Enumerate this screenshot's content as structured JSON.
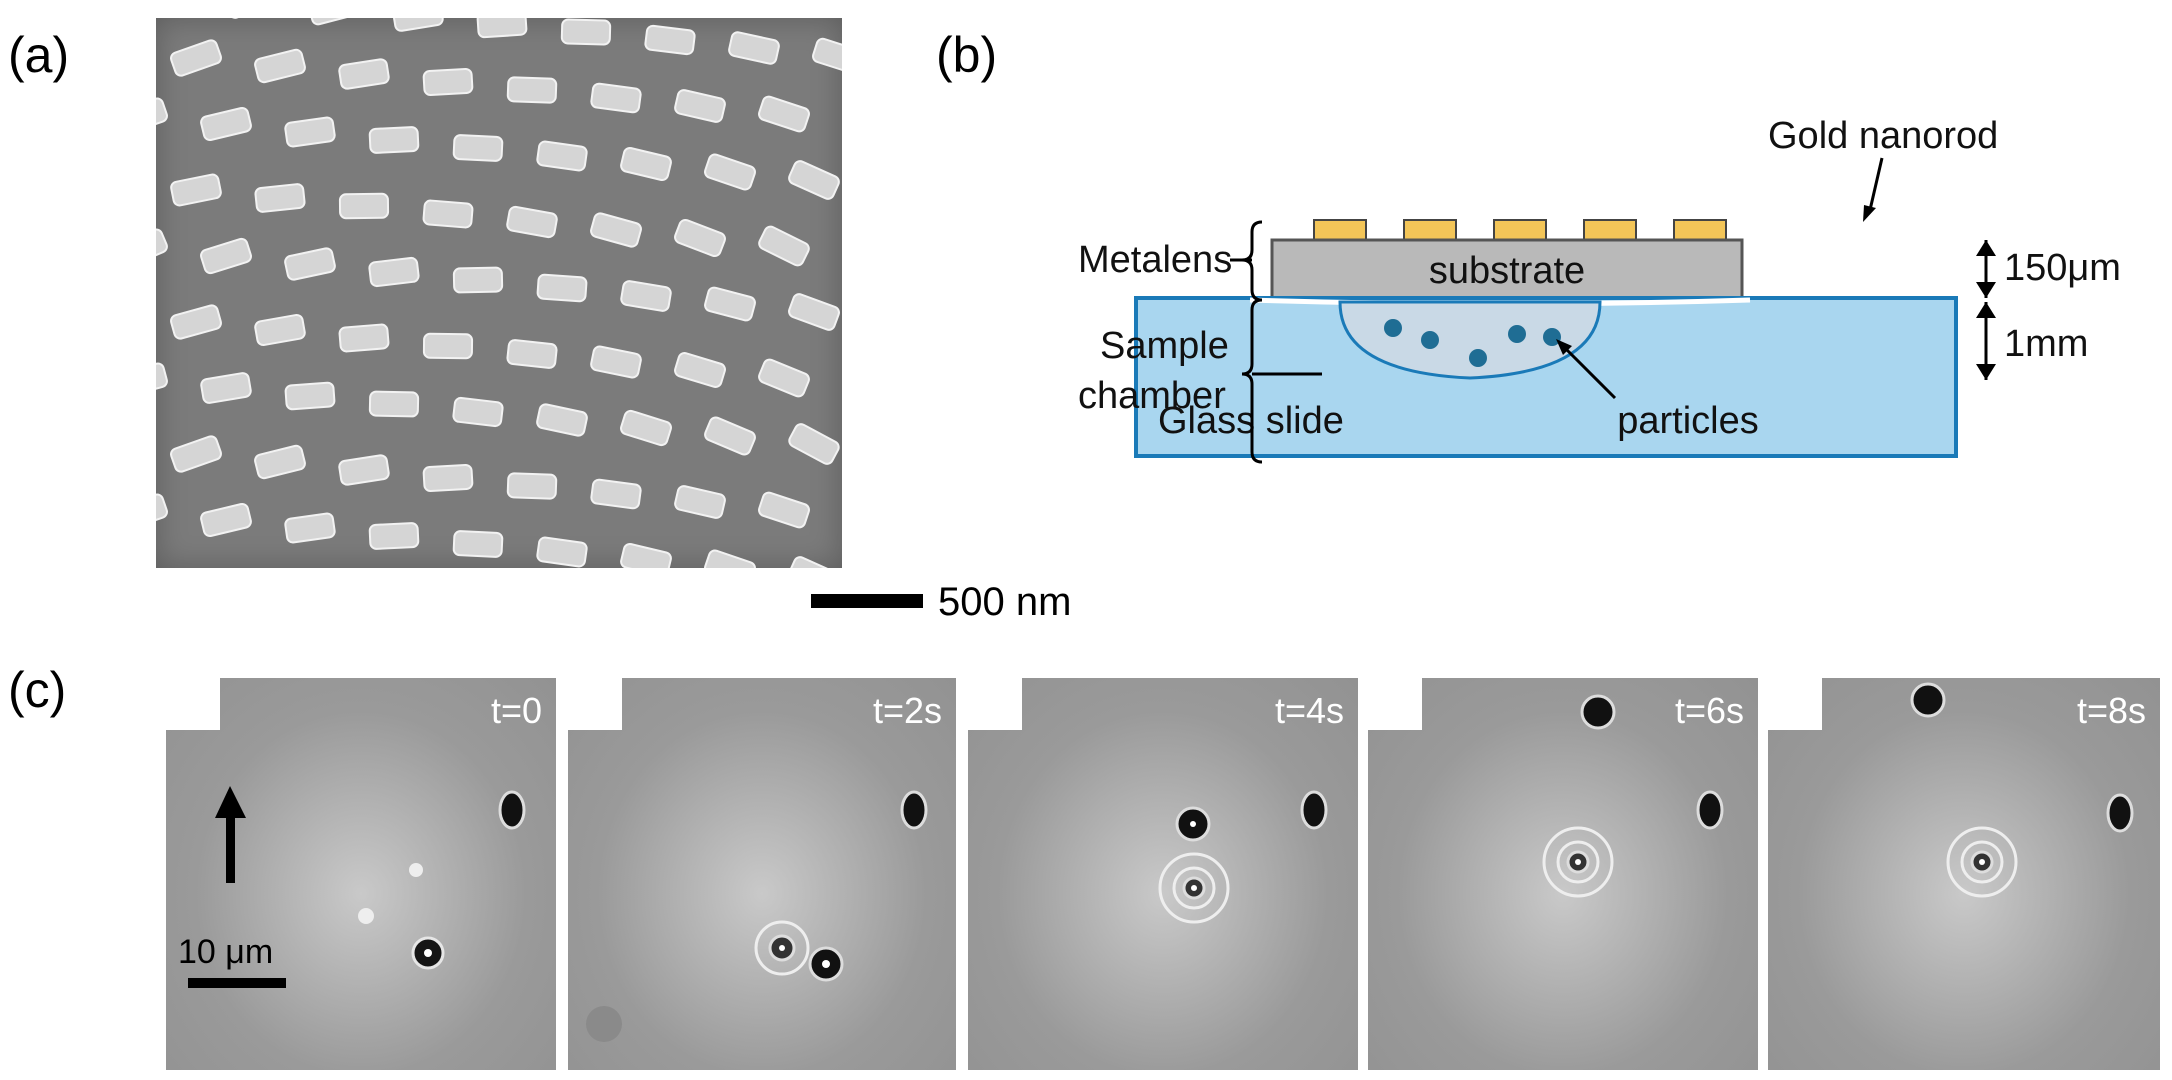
{
  "panels": {
    "a": {
      "label": "(a)"
    },
    "b": {
      "label": "(b)"
    },
    "c": {
      "label": "(c)"
    }
  },
  "sem_scale_bar": {
    "label": "500 nm"
  },
  "diagram": {
    "gold_nanorod": "Gold nanorod",
    "metalens": "Metalens",
    "substrate": "substrate",
    "thickness_substrate": "150μm",
    "thickness_chamber": "1mm",
    "sample": "Sample",
    "chamber": "chamber",
    "glass_slide": "Glass slide",
    "particles": "particles",
    "colors": {
      "nanorod": "#f3c558",
      "substrate": "#b9b9b9",
      "glass": "#a9d6ef",
      "glass_border": "#1a7ab8",
      "particle": "#1f6d94"
    }
  },
  "frames": [
    {
      "time": "t=0"
    },
    {
      "time": "t=2s"
    },
    {
      "time": "t=4s"
    },
    {
      "time": "t=6s"
    },
    {
      "time": "t=8s"
    }
  ],
  "micro_scale_bar": {
    "label": "10 μm"
  }
}
